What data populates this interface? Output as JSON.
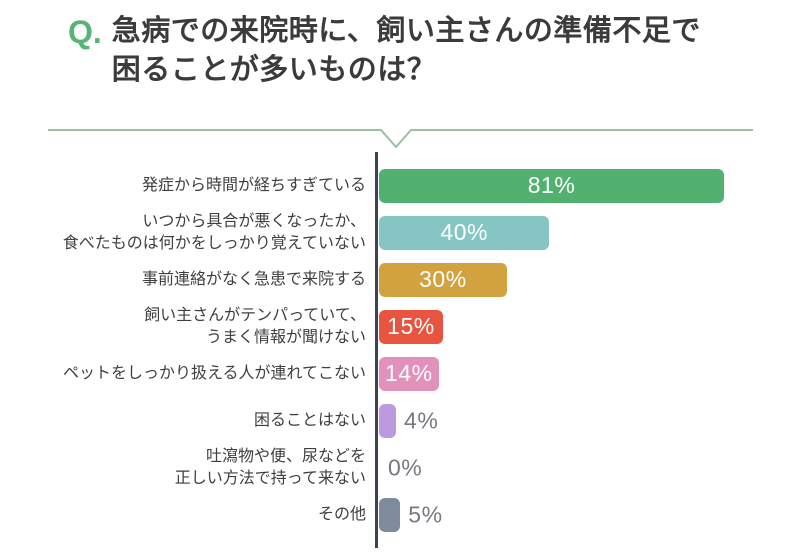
{
  "header": {
    "q_prefix": "Q.",
    "title_line1": "急病での来院時に、飼い主さんの準備不足で",
    "title_line2": "困ることが多いものは？"
  },
  "colors": {
    "accent_green": "#57b573",
    "divider_line": "#9cbfa4",
    "axis_line": "#3d4350",
    "label_text": "#3f3f3f",
    "outside_value_text": "#75797f",
    "inside_value_text": "#ffffff",
    "title_text": "#3b3b3b"
  },
  "chart_data": {
    "type": "bar",
    "orientation": "horizontal",
    "title": "急病での来院時に、飼い主さんの準備不足で困ることが多いものは？",
    "unit": "%",
    "xlim": [
      0,
      87
    ],
    "grid": false,
    "legend": "none",
    "categories": [
      "発症から時間が経ちすぎている",
      "いつから具合が悪くなったか、食べたものは何かをしっかり覚えていない",
      "事前連絡がなく急患で来院する",
      "飼い主さんがテンパっていて、うまく情報が聞けない",
      "ペットをしっかり扱える人が連れてこない",
      "困ることはない",
      "吐瀉物や便、尿などを正しい方法で持って来ない",
      "その他"
    ],
    "values": [
      81,
      40,
      30,
      15,
      14,
      4,
      0,
      5
    ],
    "rows": [
      {
        "label_lines": [
          "発症から時間が経ちすぎている"
        ],
        "value": 81,
        "value_label": "81%",
        "color": "#53b170",
        "value_inside": true
      },
      {
        "label_lines": [
          "いつから具合が悪くなったか、",
          "食べたものは何かをしっかり覚えていない"
        ],
        "value": 40,
        "value_label": "40%",
        "color": "#85c6c4",
        "value_inside": true
      },
      {
        "label_lines": [
          "事前連絡がなく急患で来院する"
        ],
        "value": 30,
        "value_label": "30%",
        "color": "#d2a23e",
        "value_inside": true
      },
      {
        "label_lines": [
          "飼い主さんがテンパっていて、",
          "うまく情報が聞けない"
        ],
        "value": 15,
        "value_label": "15%",
        "color": "#e85440",
        "value_inside": true
      },
      {
        "label_lines": [
          "ペットをしっかり扱える人が連れてこない"
        ],
        "value": 14,
        "value_label": "14%",
        "color": "#e291bb",
        "value_inside": true
      },
      {
        "label_lines": [
          "困ることはない"
        ],
        "value": 4,
        "value_label": "4%",
        "color": "#bd99e0",
        "value_inside": false
      },
      {
        "label_lines": [
          "吐瀉物や便、尿などを",
          "正しい方法で持って来ない"
        ],
        "value": 0,
        "value_label": "0%",
        "color": "#bd99e0",
        "value_inside": false
      },
      {
        "label_lines": [
          "その他"
        ],
        "value": 5,
        "value_label": "5%",
        "color": "#7e8b9a",
        "value_inside": false
      }
    ]
  }
}
